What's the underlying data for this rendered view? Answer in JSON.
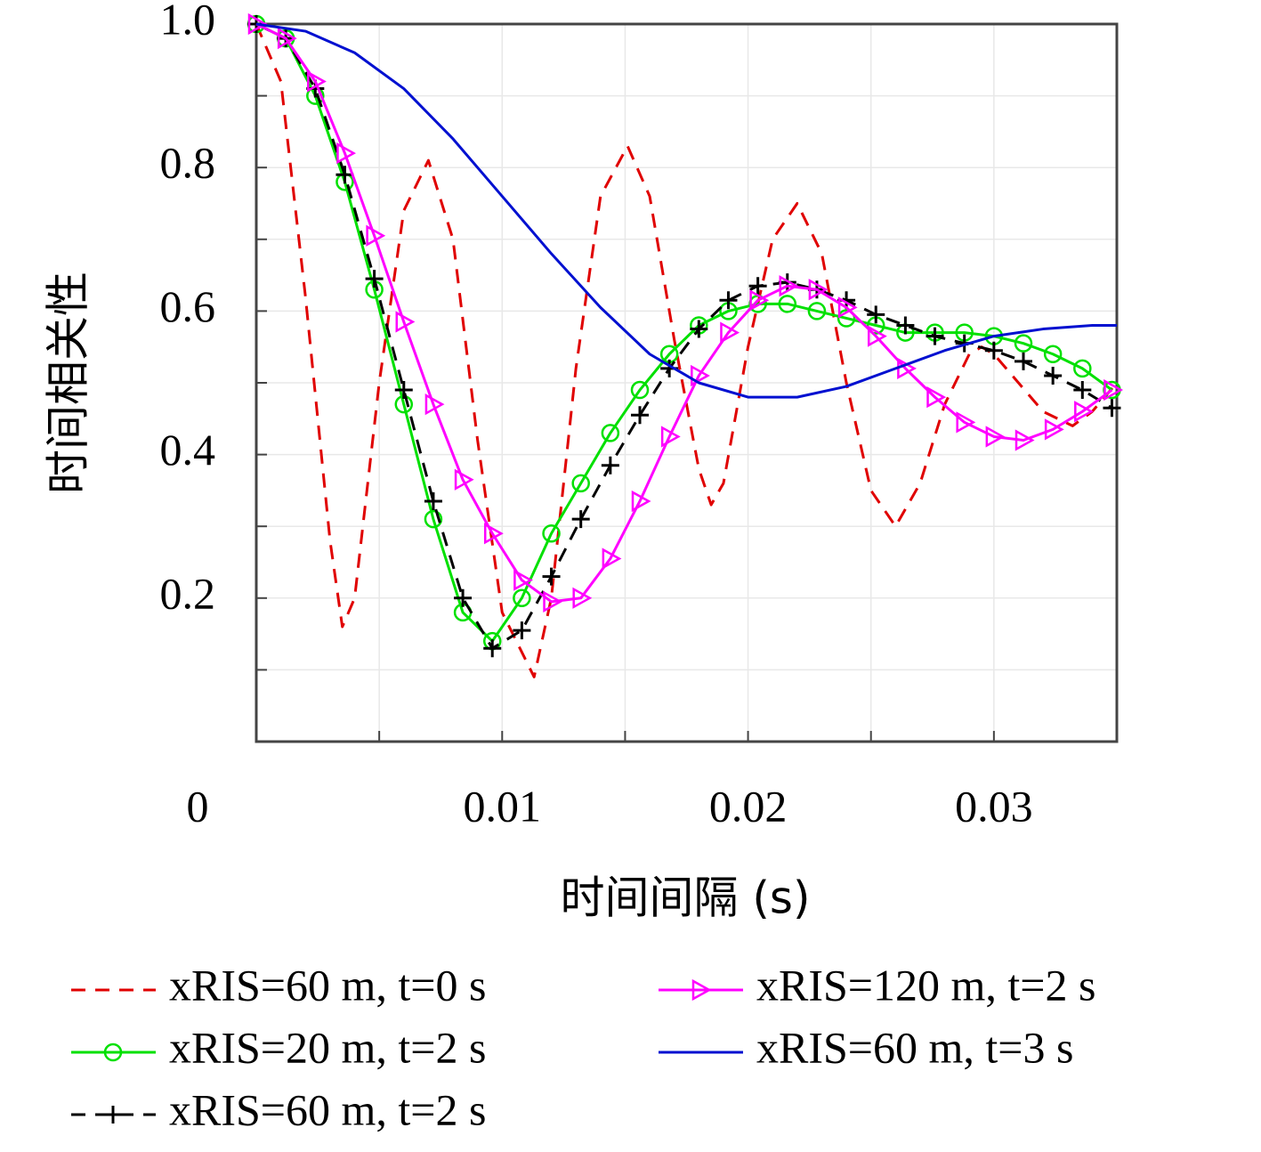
{
  "chart_data": {
    "type": "line",
    "xlabel": "时间间隔 (s)",
    "ylabel": "时间相关性",
    "xlim": [
      0,
      0.035
    ],
    "ylim": [
      0,
      1
    ],
    "xticks": [
      0,
      0.01,
      0.02,
      0.03
    ],
    "xminorticks": [
      0.005,
      0.015,
      0.025
    ],
    "yticks": [
      0.2,
      0.4,
      0.6,
      0.8,
      {
        "value": 1,
        "label": "1.0"
      }
    ],
    "yminorticks": [
      0.1,
      0.3,
      0.5,
      0.7,
      0.9
    ],
    "grid": true,
    "legend": "bottom",
    "series": [
      {
        "name": "xRIS=60 m, t=0 s",
        "color": "#e00000",
        "dash": "dashed",
        "marker": "none",
        "x": [
          0,
          0.001,
          0.002,
          0.003,
          0.0035,
          0.004,
          0.005,
          0.006,
          0.007,
          0.008,
          0.009,
          0.01,
          0.0113,
          0.012,
          0.013,
          0.014,
          0.0151,
          0.016,
          0.017,
          0.018,
          0.0185,
          0.019,
          0.02,
          0.021,
          0.022,
          0.023,
          0.024,
          0.025,
          0.026,
          0.027,
          0.028,
          0.029,
          0.0295,
          0.03,
          0.031,
          0.032,
          0.0332,
          0.034,
          0.035
        ],
        "values": [
          1.0,
          0.92,
          0.62,
          0.28,
          0.16,
          0.2,
          0.5,
          0.74,
          0.81,
          0.7,
          0.42,
          0.18,
          0.09,
          0.2,
          0.52,
          0.76,
          0.83,
          0.76,
          0.56,
          0.38,
          0.33,
          0.36,
          0.55,
          0.7,
          0.75,
          0.68,
          0.5,
          0.35,
          0.3,
          0.36,
          0.47,
          0.54,
          0.55,
          0.54,
          0.5,
          0.46,
          0.44,
          0.46,
          0.5
        ]
      },
      {
        "name": "xRIS=20 m, t=2 s",
        "color": "#00e000",
        "dash": "solid",
        "marker": "circle",
        "x": [
          0,
          0.0012,
          0.0024,
          0.0036,
          0.0048,
          0.006,
          0.0072,
          0.0084,
          0.0096,
          0.0108,
          0.012,
          0.0132,
          0.0144,
          0.0156,
          0.0168,
          0.018,
          0.0192,
          0.0204,
          0.0216,
          0.0228,
          0.024,
          0.0252,
          0.0264,
          0.0276,
          0.0288,
          0.03,
          0.0312,
          0.0324,
          0.0336,
          0.0348
        ],
        "values": [
          1.0,
          0.98,
          0.9,
          0.78,
          0.63,
          0.47,
          0.31,
          0.18,
          0.14,
          0.2,
          0.29,
          0.36,
          0.43,
          0.49,
          0.54,
          0.58,
          0.6,
          0.61,
          0.61,
          0.6,
          0.59,
          0.58,
          0.57,
          0.57,
          0.57,
          0.565,
          0.555,
          0.54,
          0.52,
          0.49
        ]
      },
      {
        "name": "xRIS=60 m, t=2 s",
        "color": "#000000",
        "dash": "dashed",
        "marker": "plus",
        "x": [
          0,
          0.0012,
          0.0024,
          0.0036,
          0.0048,
          0.006,
          0.0072,
          0.0084,
          0.0096,
          0.0108,
          0.012,
          0.0132,
          0.0144,
          0.0156,
          0.0168,
          0.018,
          0.0192,
          0.0204,
          0.0216,
          0.0228,
          0.024,
          0.0252,
          0.0264,
          0.0276,
          0.0288,
          0.03,
          0.0312,
          0.0324,
          0.0336,
          0.0348
        ],
        "values": [
          1.0,
          0.98,
          0.91,
          0.79,
          0.645,
          0.49,
          0.335,
          0.2,
          0.13,
          0.155,
          0.23,
          0.31,
          0.385,
          0.455,
          0.52,
          0.575,
          0.615,
          0.635,
          0.64,
          0.63,
          0.615,
          0.595,
          0.58,
          0.565,
          0.555,
          0.545,
          0.53,
          0.51,
          0.49,
          0.465
        ]
      },
      {
        "name": "xRIS=120 m, t=2 s",
        "color": "#ff00ff",
        "dash": "solid",
        "marker": "triangle-right",
        "x": [
          0,
          0.0012,
          0.0024,
          0.0036,
          0.0048,
          0.006,
          0.0072,
          0.0084,
          0.0096,
          0.0108,
          0.012,
          0.0132,
          0.0144,
          0.0156,
          0.0168,
          0.018,
          0.0192,
          0.0204,
          0.0216,
          0.0228,
          0.024,
          0.0252,
          0.0264,
          0.0276,
          0.0288,
          0.03,
          0.0312,
          0.0324,
          0.0336,
          0.0348
        ],
        "values": [
          1.0,
          0.98,
          0.92,
          0.82,
          0.705,
          0.585,
          0.47,
          0.365,
          0.29,
          0.225,
          0.195,
          0.2,
          0.255,
          0.335,
          0.425,
          0.51,
          0.57,
          0.615,
          0.635,
          0.63,
          0.605,
          0.565,
          0.52,
          0.48,
          0.445,
          0.425,
          0.42,
          0.435,
          0.46,
          0.49
        ]
      },
      {
        "name": "xRIS=60 m, t=3 s",
        "color": "#0010d0",
        "dash": "solid",
        "marker": "none",
        "x": [
          0,
          0.002,
          0.004,
          0.006,
          0.008,
          0.01,
          0.012,
          0.014,
          0.016,
          0.018,
          0.02,
          0.022,
          0.024,
          0.026,
          0.028,
          0.03,
          0.032,
          0.034,
          0.035
        ],
        "values": [
          1.0,
          0.99,
          0.96,
          0.91,
          0.84,
          0.76,
          0.68,
          0.605,
          0.54,
          0.5,
          0.48,
          0.48,
          0.495,
          0.52,
          0.545,
          0.565,
          0.575,
          0.58,
          0.58
        ]
      }
    ]
  }
}
